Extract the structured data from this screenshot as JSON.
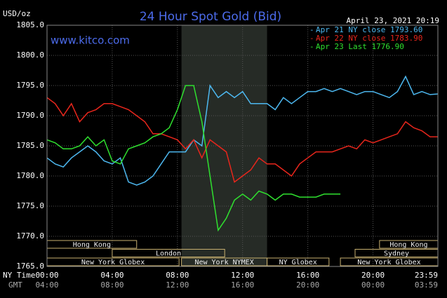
{
  "chart_data": {
    "type": "line",
    "title": "24 Hour Spot Gold (Bid)",
    "ylabel": "USD/oz",
    "watermark": "www.kitco.com",
    "timestamp": "April 23, 2021 20:19",
    "x_axis_name": "NY Time",
    "x2_axis_name": "GMT",
    "xlim": [
      0,
      23.98
    ],
    "ylim": [
      1765,
      1805
    ],
    "xticks": [
      {
        "value": 0,
        "label": "00:00"
      },
      {
        "value": 4,
        "label": "04:00"
      },
      {
        "value": 8,
        "label": "08:00"
      },
      {
        "value": 12,
        "label": "12:00"
      },
      {
        "value": 16,
        "label": "16:00"
      },
      {
        "value": 20,
        "label": "20:00"
      },
      {
        "value": 23.98,
        "label": "23:59"
      }
    ],
    "x2ticks": [
      {
        "value": 0,
        "label": "04:00"
      },
      {
        "value": 4,
        "label": "08:00"
      },
      {
        "value": 8,
        "label": "12:00"
      },
      {
        "value": 12,
        "label": "16:00"
      },
      {
        "value": 16,
        "label": "20:00"
      },
      {
        "value": 20,
        "label": "00:00"
      },
      {
        "value": 23.98,
        "label": "03:59"
      }
    ],
    "yticks": [
      {
        "value": 1765,
        "label": "1765.0"
      },
      {
        "value": 1770,
        "label": "1770.0"
      },
      {
        "value": 1775,
        "label": "1775.0"
      },
      {
        "value": 1780,
        "label": "1780.0"
      },
      {
        "value": 1785,
        "label": "1785.0"
      },
      {
        "value": 1790,
        "label": "1790.0"
      },
      {
        "value": 1795,
        "label": "1795.0"
      },
      {
        "value": 1800,
        "label": "1800.0"
      },
      {
        "value": 1805,
        "label": "1805.0"
      }
    ],
    "grid": true,
    "highlight": [
      8.25,
      13.5
    ],
    "session_rows": [
      [
        {
          "name": "Hong Kong",
          "start": 0,
          "end": 5.5
        },
        {
          "name": "Hong Kong",
          "start": 20.4,
          "end": 23.98
        }
      ],
      [
        {
          "name": "London",
          "start": 4,
          "end": 10.9
        },
        {
          "name": "Sydney",
          "start": 18.9,
          "end": 23.98
        }
      ],
      [
        {
          "name": "New York Globex",
          "start": 0,
          "end": 8.1
        },
        {
          "name": "New York NYMEX",
          "start": 8.25,
          "end": 13.5
        },
        {
          "name": "NY Globex",
          "start": 13.5,
          "end": 17.3
        },
        {
          "name": "New York Globex",
          "start": 18,
          "end": 23.98
        }
      ]
    ],
    "x": [
      0,
      0.5,
      1,
      1.5,
      2,
      2.5,
      3,
      3.5,
      4,
      4.5,
      5,
      5.5,
      6,
      6.5,
      7,
      7.5,
      8,
      8.5,
      9,
      9.5,
      10,
      10.5,
      11,
      11.5,
      12,
      12.5,
      13,
      13.5,
      14,
      14.5,
      15,
      15.5,
      16,
      16.5,
      17,
      17.5,
      18,
      18.5,
      19,
      19.5,
      20,
      20.5,
      21,
      21.5,
      22,
      22.5,
      23,
      23.5,
      23.98
    ],
    "series": [
      {
        "name": "Apr 21 NY close 1793.60",
        "color": "#4db8f0",
        "values": [
          1783,
          1782,
          1781.5,
          1783,
          1784,
          1785,
          1784,
          1782.5,
          1782,
          1783,
          1779,
          1778.5,
          1779,
          1780,
          1782,
          1784,
          1784,
          1784,
          1786,
          1785,
          1795,
          1793,
          1794,
          1793,
          1794,
          1792,
          1792,
          1792,
          1791,
          1793,
          1792,
          1793,
          1794,
          1794,
          1794.5,
          1794,
          1794.5,
          1794,
          1793.5,
          1794,
          1794,
          1793.5,
          1793,
          1794,
          1796.5,
          1793.5,
          1794,
          1793.5,
          1793.6
        ]
      },
      {
        "name": "Apr 22 NY close 1783.90",
        "color": "#e8261c",
        "values": [
          1793,
          1792,
          1790,
          1792,
          1789,
          1790.5,
          1791,
          1792,
          1792,
          1791.5,
          1791,
          1790,
          1789,
          1787,
          1787,
          1786.5,
          1786,
          1784.5,
          1786,
          1783,
          1786,
          1785,
          1784,
          1779,
          1780,
          1781,
          1783,
          1782,
          1782,
          1781,
          1780,
          1782,
          1783,
          1784,
          1784,
          1784,
          1784.5,
          1785,
          1784.5,
          1786,
          1785.5,
          1786,
          1786.5,
          1787,
          1789,
          1788,
          1787.5,
          1786.5,
          1786.5
        ]
      },
      {
        "name": "Apr 23 Last 1776.90",
        "color": "#2fe02f",
        "values": [
          1786,
          1785.5,
          1784.5,
          1784.5,
          1785,
          1786.5,
          1785,
          1786,
          1782.5,
          1782,
          1784.5,
          1785,
          1785.5,
          1786.5,
          1787,
          1788,
          1791,
          1795,
          1795,
          1789,
          1780,
          1771,
          1773,
          1776,
          1777,
          1776,
          1777.5,
          1777,
          1776,
          1777,
          1777,
          1776.5,
          1776.5,
          1776.5,
          1777,
          1777,
          1777,
          null,
          null,
          null,
          null,
          null,
          null,
          null,
          null,
          null,
          null,
          null,
          null
        ]
      }
    ]
  }
}
